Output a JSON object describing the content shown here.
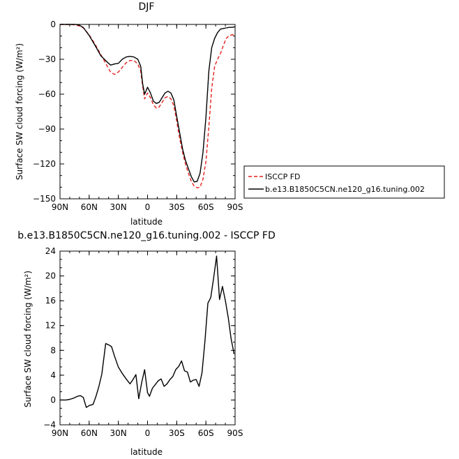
{
  "chart_data": [
    {
      "type": "line",
      "title": "DJF",
      "xlabel": "latitude",
      "ylabel": "Surface SW cloud forcing (W/m²)",
      "xlim": [
        -90,
        90
      ],
      "ylim": [
        -150,
        0
      ],
      "x_ticks": [
        {
          "value": -90,
          "label": "90N"
        },
        {
          "value": -60,
          "label": "60N"
        },
        {
          "value": -30,
          "label": "30N"
        },
        {
          "value": 0,
          "label": "0"
        },
        {
          "value": 30,
          "label": "30S"
        },
        {
          "value": 60,
          "label": "60S"
        },
        {
          "value": 90,
          "label": "90S"
        }
      ],
      "y_ticks": [
        0,
        -30,
        -60,
        -90,
        -120,
        -150
      ],
      "legend_position": "right",
      "series": [
        {
          "name": "ISCCP FD",
          "color": "#e4201c",
          "dash": "dashed",
          "x": [
            -90,
            -80,
            -74,
            -70,
            -66,
            -60,
            -54,
            -48,
            -42,
            -38,
            -34,
            -30,
            -26,
            -22,
            -18,
            -14,
            -10,
            -7,
            -5,
            -3,
            0,
            3,
            6,
            9,
            12,
            15,
            18,
            21,
            24,
            27,
            30,
            33,
            36,
            39,
            42,
            45,
            48,
            51,
            54,
            57,
            60,
            63,
            66,
            69,
            72,
            75,
            78,
            81,
            84,
            87,
            90
          ],
          "y": [
            0,
            0,
            -0.5,
            -1.3,
            -3,
            -9,
            -17,
            -26,
            -35,
            -41,
            -43,
            -41,
            -37,
            -33,
            -31,
            -31,
            -34,
            -40,
            -53,
            -64,
            -59,
            -63,
            -69,
            -72,
            -71,
            -67,
            -63,
            -62,
            -64,
            -70,
            -83,
            -98,
            -110,
            -120,
            -128,
            -135,
            -139,
            -140.5,
            -140,
            -133,
            -118,
            -88,
            -55,
            -36,
            -30,
            -25,
            -18,
            -12,
            -9.5,
            -9,
            -8.5
          ]
        },
        {
          "name": "b.e13.B1850C5CN.ne120_g16.tuning.002",
          "color": "#000000",
          "dash": "solid",
          "x": [
            -90,
            -80,
            -74,
            -70,
            -66,
            -60,
            -54,
            -48,
            -42,
            -38,
            -34,
            -30,
            -26,
            -22,
            -18,
            -14,
            -10,
            -7,
            -5,
            -3,
            0,
            3,
            6,
            9,
            12,
            15,
            18,
            21,
            24,
            27,
            30,
            33,
            36,
            39,
            42,
            45,
            48,
            51,
            54,
            57,
            60,
            63,
            66,
            69,
            72,
            75,
            78,
            81,
            84,
            87,
            90
          ],
          "y": [
            0,
            0,
            0,
            -0.7,
            -2.7,
            -9.5,
            -18,
            -27,
            -32,
            -35,
            -34,
            -33.5,
            -30,
            -28,
            -27.5,
            -28,
            -30,
            -36,
            -51,
            -60,
            -54,
            -59,
            -66,
            -68,
            -67,
            -63,
            -59,
            -57.5,
            -59,
            -65,
            -79,
            -93,
            -107,
            -117,
            -124,
            -131,
            -135.5,
            -135,
            -128,
            -110,
            -80,
            -40,
            -20,
            -12,
            -7,
            -4,
            -3.5,
            -3,
            -2.5,
            -2.5,
            -2
          ]
        }
      ]
    },
    {
      "type": "line",
      "title": "b.e13.B1850C5CN.ne120_g16.tuning.002 - ISCCP FD",
      "xlabel": "latitude",
      "ylabel": "Surface SW cloud forcing (W/m²)",
      "xlim": [
        -90,
        90
      ],
      "ylim": [
        -4,
        24
      ],
      "x_ticks": [
        {
          "value": -90,
          "label": "90N"
        },
        {
          "value": -60,
          "label": "60N"
        },
        {
          "value": -30,
          "label": "30N"
        },
        {
          "value": 0,
          "label": "0"
        },
        {
          "value": 30,
          "label": "30S"
        },
        {
          "value": 60,
          "label": "60S"
        },
        {
          "value": 90,
          "label": "90S"
        }
      ],
      "y_ticks": [
        24,
        20,
        16,
        12,
        8,
        4,
        0,
        -4
      ],
      "series": [
        {
          "color": "#000000",
          "dash": "solid",
          "x": [
            -90,
            -84,
            -80,
            -76,
            -72,
            -69,
            -66,
            -63,
            -60,
            -56,
            -53,
            -50,
            -47,
            -43,
            -40,
            -37,
            -34,
            -30,
            -26,
            -22,
            -18,
            -15,
            -12,
            -9,
            -6,
            -3,
            0,
            2,
            5,
            8,
            11,
            14,
            17,
            20,
            23,
            26,
            29,
            32,
            35,
            38,
            41,
            44,
            47,
            50,
            53,
            56,
            59,
            62,
            65,
            68,
            71,
            74,
            77,
            80,
            83,
            86,
            89
          ],
          "y": [
            0,
            0,
            0.1,
            0.3,
            0.6,
            0.7,
            0.4,
            -1.2,
            -0.9,
            -0.7,
            0.6,
            2.2,
            4.2,
            9.1,
            8.9,
            8.6,
            7.1,
            5.3,
            4.3,
            3.4,
            2.6,
            3.3,
            4.1,
            0.2,
            2.8,
            4.9,
            1.2,
            0.6,
            1.9,
            2.5,
            3.1,
            3.4,
            2.2,
            2.6,
            3.3,
            3.8,
            4.9,
            5.4,
            6.3,
            4.7,
            4.5,
            2.9,
            3.2,
            3.3,
            2.2,
            4.4,
            9.5,
            15.6,
            16.5,
            19.7,
            23.2,
            16.2,
            18.3,
            16,
            13.3,
            9.8,
            7.4
          ]
        }
      ]
    }
  ]
}
